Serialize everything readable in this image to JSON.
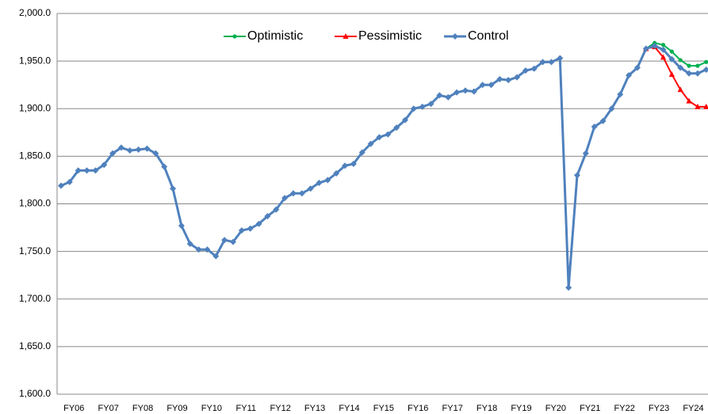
{
  "chart_data": {
    "type": "line",
    "categories": [
      "FY06",
      null,
      null,
      null,
      "FY07",
      null,
      null,
      null,
      "FY08",
      null,
      null,
      null,
      "FY09",
      null,
      null,
      null,
      "FY10",
      null,
      null,
      null,
      "FY11",
      null,
      null,
      null,
      "FY12",
      null,
      null,
      null,
      "FY13",
      null,
      null,
      null,
      "FY14",
      null,
      null,
      null,
      "FY15",
      null,
      null,
      null,
      "FY16",
      null,
      null,
      null,
      "FY17",
      null,
      null,
      null,
      "FY18",
      null,
      null,
      null,
      "FY19",
      null,
      null,
      null,
      "FY20",
      null,
      null,
      null,
      "FY21",
      null,
      null,
      null,
      "FY22",
      null,
      null,
      null,
      "FY23",
      null,
      null,
      null,
      "FY24",
      null,
      null,
      null
    ],
    "series": [
      {
        "name": "Optimistic",
        "color": "#00b050",
        "marker": "circle",
        "values": [
          null,
          null,
          null,
          null,
          null,
          null,
          null,
          null,
          null,
          null,
          null,
          null,
          null,
          null,
          null,
          null,
          null,
          null,
          null,
          null,
          null,
          null,
          null,
          null,
          null,
          null,
          null,
          null,
          null,
          null,
          null,
          null,
          null,
          null,
          null,
          null,
          null,
          null,
          null,
          null,
          null,
          null,
          null,
          null,
          null,
          null,
          null,
          null,
          null,
          null,
          null,
          null,
          null,
          null,
          null,
          null,
          null,
          null,
          null,
          null,
          null,
          null,
          null,
          null,
          null,
          null,
          null,
          null,
          1963,
          1969,
          1967,
          1960,
          1951,
          1945,
          1945,
          1949
        ]
      },
      {
        "name": "Pessimistic",
        "color": "#ff0000",
        "marker": "triangle",
        "values": [
          null,
          null,
          null,
          null,
          null,
          null,
          null,
          null,
          null,
          null,
          null,
          null,
          null,
          null,
          null,
          null,
          null,
          null,
          null,
          null,
          null,
          null,
          null,
          null,
          null,
          null,
          null,
          null,
          null,
          null,
          null,
          null,
          null,
          null,
          null,
          null,
          null,
          null,
          null,
          null,
          null,
          null,
          null,
          null,
          null,
          null,
          null,
          null,
          null,
          null,
          null,
          null,
          null,
          null,
          null,
          null,
          null,
          null,
          null,
          null,
          null,
          null,
          null,
          null,
          null,
          null,
          null,
          null,
          1963,
          1965,
          1954,
          1936,
          1920,
          1908,
          1902,
          1902
        ]
      },
      {
        "name": "Control",
        "color": "#4f81bd",
        "marker": "diamond",
        "values": [
          1819,
          1823,
          1835,
          1835,
          1835,
          1841,
          1853,
          1859,
          1856,
          1857,
          1858,
          1853,
          1839,
          1816,
          1777,
          1758,
          1752,
          1752,
          1745,
          1762,
          1760,
          1772,
          1774,
          1779,
          1787,
          1794,
          1806,
          1811,
          1811,
          1816,
          1822,
          1825,
          1832,
          1840,
          1842,
          1854,
          1863,
          1870,
          1873,
          1880,
          1888,
          1900,
          1902,
          1905,
          1914,
          1912,
          1917,
          1919,
          1918,
          1925,
          1925,
          1931,
          1930,
          1933,
          1940,
          1942,
          1949,
          1949,
          1953,
          1712,
          1830,
          1853,
          1881,
          1887,
          1900,
          1915,
          1935,
          1943,
          1963,
          1966,
          1962,
          1952,
          1943,
          1937,
          1937,
          1941
        ]
      }
    ],
    "ylim": [
      1600,
      2000
    ],
    "yticks": [
      {
        "value": 1600,
        "label": "1,600.0"
      },
      {
        "value": 1650,
        "label": "1,650.0"
      },
      {
        "value": 1700,
        "label": "1,700.0"
      },
      {
        "value": 1750,
        "label": "1,750.0"
      },
      {
        "value": 1800,
        "label": "1,800.0"
      },
      {
        "value": 1850,
        "label": "1,850.0"
      },
      {
        "value": 1900,
        "label": "1,900.0"
      },
      {
        "value": 1950,
        "label": "1,950.0"
      },
      {
        "value": 2000,
        "label": "2,000.0"
      }
    ],
    "grid": true,
    "legend": "top"
  }
}
